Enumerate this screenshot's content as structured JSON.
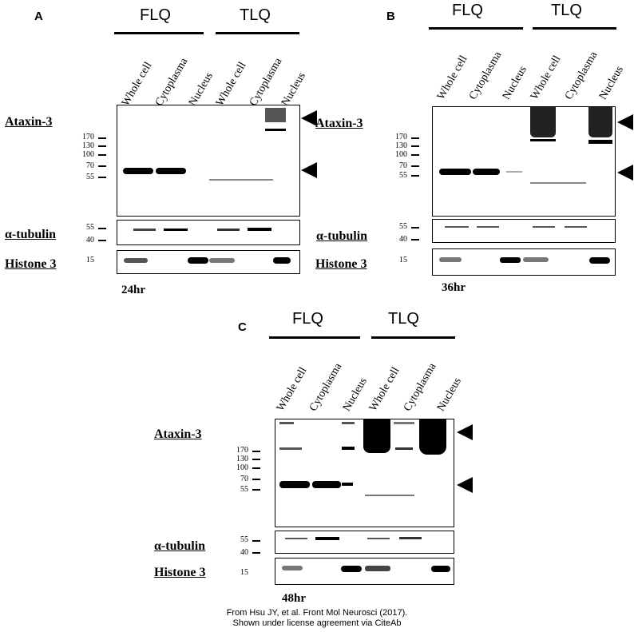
{
  "panels": {
    "A": {
      "label": "A",
      "groups": [
        "FLQ",
        "TLQ"
      ],
      "lanes": [
        "Whole cell",
        "Cytoplasma",
        "Nucleus",
        "Whole cell",
        "Cytoplasma",
        "Nucleus"
      ],
      "time": "24hr"
    },
    "B": {
      "label": "B",
      "groups": [
        "FLQ",
        "TLQ"
      ],
      "lanes": [
        "Whole cell",
        "Cytoplasma",
        "Nucleus",
        "Whole cell",
        "Cytoplasma",
        "Nucleus"
      ],
      "time": "36hr"
    },
    "C": {
      "label": "C",
      "groups": [
        "FLQ",
        "TLQ"
      ],
      "lanes": [
        "Whole cell",
        "Cytoplasma",
        "Nucleus",
        "Whole cell",
        "Cytoplasma",
        "Nucleus"
      ],
      "time": "48hr"
    }
  },
  "row_labels": {
    "ataxin": "Ataxin-3",
    "tubulin": "α-tubulin",
    "histone": "Histone 3"
  },
  "mw_markers": {
    "ataxin": [
      "170",
      "130",
      "100",
      "70",
      "55"
    ],
    "tubulin": [
      "55",
      "40"
    ],
    "histone": [
      "15"
    ]
  },
  "credit": {
    "line1": "From Hsu JY, et al. Front Mol Neurosci (2017).",
    "line2": "Shown under license agreement via CiteAb"
  }
}
